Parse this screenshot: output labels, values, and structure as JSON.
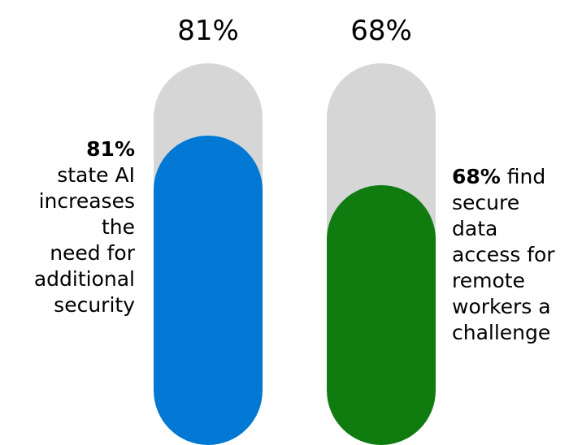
{
  "chart_data": {
    "type": "bar",
    "categories": [
      "81%",
      "68%"
    ],
    "values": [
      81,
      68
    ],
    "ylim": [
      0,
      100
    ],
    "colors": [
      "#0078d4",
      "#107c10"
    ],
    "track_color": "#d6d6d6",
    "bars": [
      {
        "value_label": "81%",
        "callout_bold": "81%",
        "callout_lines": [
          "state AI",
          "increases",
          "the",
          "need for",
          "additional",
          "security"
        ]
      },
      {
        "value_label": "68%",
        "callout_bold": "68%",
        "callout_first_rest": " find",
        "callout_lines": [
          "secure",
          "data",
          "access for",
          "remote",
          "workers a",
          "challenge"
        ]
      }
    ]
  }
}
